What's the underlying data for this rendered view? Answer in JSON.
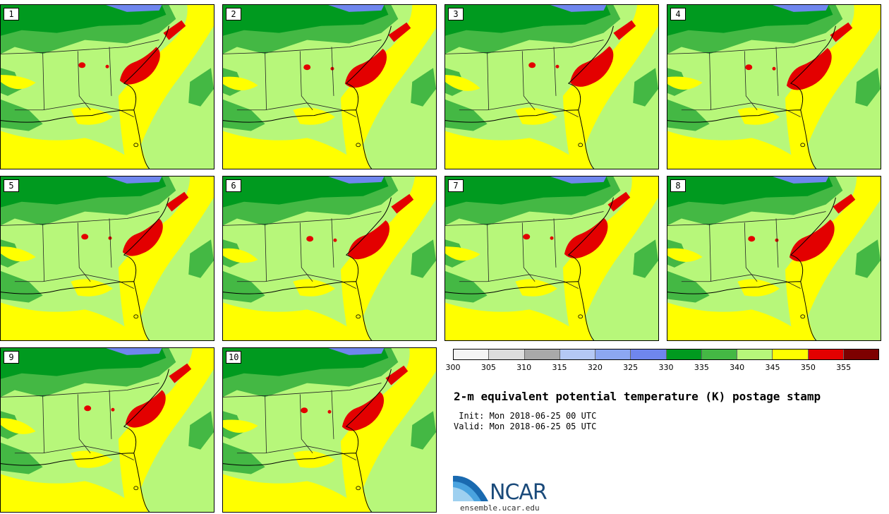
{
  "panels": [
    {
      "label": "1"
    },
    {
      "label": "2"
    },
    {
      "label": "3"
    },
    {
      "label": "4"
    },
    {
      "label": "5"
    },
    {
      "label": "6"
    },
    {
      "label": "7"
    },
    {
      "label": "8"
    },
    {
      "label": "9"
    },
    {
      "label": "10"
    }
  ],
  "legend": {
    "ticks": [
      "300",
      "305",
      "310",
      "315",
      "320",
      "325",
      "330",
      "335",
      "340",
      "345",
      "350",
      "355"
    ],
    "colors": [
      "#f4f4f4",
      "#dcdcdc",
      "#a9a9a9",
      "#b4c8f5",
      "#8ca7f2",
      "#6f86ee",
      "#009a1f",
      "#44b844",
      "#b7f77a",
      "#ffff00",
      "#e30000",
      "#7d0000"
    ]
  },
  "title": "2-m equivalent potential temperature (K) postage stamp",
  "init": " Init: Mon 2018-06-25 00 UTC",
  "valid": "Valid: Mon 2018-06-25 05 UTC",
  "logo": {
    "name": "NCAR",
    "url": "ensemble.ucar.edu"
  },
  "map_colors": {
    "ocean": "#b7f77a",
    "north": "#009a1f",
    "mid": "#44b844",
    "warm": "#ffff00",
    "hot": "#e30000",
    "lake": "#6f86ee"
  }
}
